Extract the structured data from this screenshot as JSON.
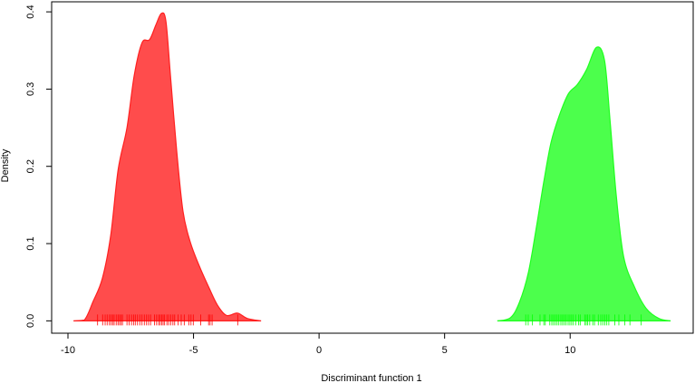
{
  "chart_data": {
    "type": "area",
    "title": "",
    "xlabel": "Discriminant function 1",
    "ylabel": "Density",
    "xlim": [
      -10.65,
      14.9
    ],
    "ylim": [
      -0.016,
      0.413
    ],
    "x_ticks": [
      -10,
      -5,
      0,
      5,
      10
    ],
    "x_tick_labels": [
      "-10",
      "-5",
      "0",
      "5",
      "10"
    ],
    "y_ticks": [
      0.0,
      0.1,
      0.2,
      0.3,
      0.4
    ],
    "y_tick_labels": [
      "0.0",
      "0.1",
      "0.2",
      "0.3",
      "0.4"
    ],
    "grid": false,
    "series": [
      {
        "color": "#FF4C4C",
        "stroke": "#FF2020",
        "rug_color": "#FF0000",
        "x": [
          -9.78,
          -9.35,
          -9.0,
          -8.63,
          -8.3,
          -8.0,
          -7.65,
          -7.36,
          -7.05,
          -6.75,
          -6.5,
          -6.28,
          -6.1,
          -5.92,
          -5.67,
          -5.42,
          -5.13,
          -4.77,
          -4.4,
          -4.04,
          -3.68,
          -3.25,
          -2.85,
          -2.31
        ],
        "y": [
          0,
          0.001,
          0.025,
          0.055,
          0.11,
          0.196,
          0.25,
          0.318,
          0.36,
          0.364,
          0.383,
          0.398,
          0.388,
          0.318,
          0.22,
          0.142,
          0.102,
          0.071,
          0.044,
          0.02,
          0.007,
          0.01,
          0.003,
          0
        ],
        "rug": [
          -8.82,
          -8.62,
          -8.52,
          -8.44,
          -8.35,
          -8.28,
          -8.22,
          -8.16,
          -8.08,
          -8.01,
          -7.95,
          -7.89,
          -7.83,
          -7.65,
          -7.56,
          -7.47,
          -7.39,
          -7.32,
          -7.23,
          -7.14,
          -7.05,
          -6.96,
          -6.87,
          -6.79,
          -6.71,
          -6.55,
          -6.47,
          -6.39,
          -6.33,
          -6.27,
          -6.21,
          -6.15,
          -6.06,
          -5.99,
          -5.91,
          -5.82,
          -5.75,
          -5.61,
          -5.49,
          -5.37,
          -5.19,
          -5.1,
          -5.01,
          -4.71,
          -4.4,
          -4.34,
          -4.26,
          -3.24
        ]
      },
      {
        "color": "#4CFF4C",
        "stroke": "#20FF20",
        "rug_color": "#00FF00",
        "x": [
          7.1,
          7.62,
          7.98,
          8.34,
          8.66,
          8.95,
          9.24,
          9.57,
          9.93,
          10.29,
          10.65,
          11.05,
          11.37,
          11.59,
          11.84,
          12.13,
          12.56,
          13.03,
          13.54,
          14.0
        ],
        "y": [
          0,
          0.004,
          0.024,
          0.063,
          0.122,
          0.18,
          0.231,
          0.266,
          0.294,
          0.306,
          0.325,
          0.354,
          0.337,
          0.259,
          0.161,
          0.083,
          0.044,
          0.016,
          0.003,
          0
        ],
        "rug": [
          8.23,
          8.33,
          8.5,
          8.8,
          8.95,
          9.01,
          9.19,
          9.27,
          9.34,
          9.41,
          9.48,
          9.55,
          9.63,
          9.7,
          9.77,
          9.84,
          9.92,
          9.99,
          10.06,
          10.13,
          10.22,
          10.34,
          10.4,
          10.58,
          10.64,
          10.7,
          10.78,
          10.9,
          10.97,
          11.12,
          11.22,
          11.3,
          11.38,
          11.46,
          11.54,
          11.78,
          11.94,
          12.18,
          12.38,
          12.83
        ]
      }
    ]
  }
}
